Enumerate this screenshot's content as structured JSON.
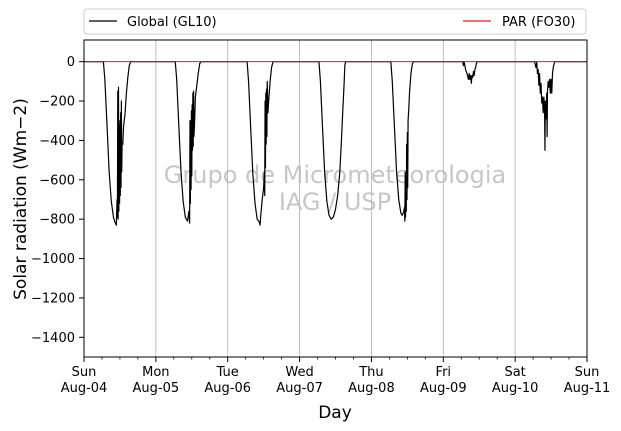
{
  "chart_data": {
    "type": "line",
    "ylabel": "Solar radiation (Wm−2)",
    "xlabel": "Day",
    "ylim": [
      -1500,
      110
    ],
    "yticks": [
      0,
      -200,
      -400,
      -600,
      -800,
      -1000,
      -1200,
      -1400
    ],
    "x_range_days": [
      0,
      7
    ],
    "xticks": [
      {
        "day": 0,
        "line1": "Sun",
        "line2": "Aug-04"
      },
      {
        "day": 1,
        "line1": "Mon",
        "line2": "Aug-05"
      },
      {
        "day": 2,
        "line1": "Tue",
        "line2": "Aug-06"
      },
      {
        "day": 3,
        "line1": "Wed",
        "line2": "Aug-07"
      },
      {
        "day": 4,
        "line1": "Thu",
        "line2": "Aug-08"
      },
      {
        "day": 5,
        "line1": "Fri",
        "line2": "Aug-09"
      },
      {
        "day": 6,
        "line1": "Sat",
        "line2": "Aug-10"
      },
      {
        "day": 7,
        "line1": "Sun",
        "line2": "Aug-11"
      }
    ],
    "minor_xticks_hours": [
      6,
      12,
      18
    ],
    "grid": "x-major",
    "legend": {
      "placement": "top",
      "entries": [
        "Global (GL10)",
        "PAR (FO30)"
      ]
    },
    "series": [
      {
        "name": "Global (GL10)",
        "color": "#000000",
        "points": [
          [
            0.0,
            0
          ],
          [
            0.27,
            0
          ],
          [
            0.29,
            -90
          ],
          [
            0.32,
            -320
          ],
          [
            0.35,
            -560
          ],
          [
            0.38,
            -710
          ],
          [
            0.41,
            -790
          ],
          [
            0.43,
            -815
          ],
          [
            0.45,
            -830
          ],
          [
            0.46,
            -700
          ],
          [
            0.465,
            -790
          ],
          [
            0.47,
            -150
          ],
          [
            0.475,
            -800
          ],
          [
            0.48,
            -130
          ],
          [
            0.485,
            -760
          ],
          [
            0.49,
            -300
          ],
          [
            0.495,
            -720
          ],
          [
            0.5,
            -320
          ],
          [
            0.505,
            -680
          ],
          [
            0.51,
            -260
          ],
          [
            0.515,
            -640
          ],
          [
            0.52,
            -200
          ],
          [
            0.525,
            -560
          ],
          [
            0.53,
            -420
          ],
          [
            0.54,
            -420
          ],
          [
            0.55,
            -330
          ],
          [
            0.57,
            -270
          ],
          [
            0.59,
            -160
          ],
          [
            0.61,
            -80
          ],
          [
            0.63,
            -20
          ],
          [
            0.65,
            0
          ],
          [
            1.27,
            0
          ],
          [
            1.29,
            -90
          ],
          [
            1.32,
            -330
          ],
          [
            1.35,
            -560
          ],
          [
            1.38,
            -710
          ],
          [
            1.41,
            -790
          ],
          [
            1.44,
            -810
          ],
          [
            1.46,
            -760
          ],
          [
            1.47,
            -820
          ],
          [
            1.475,
            -300
          ],
          [
            1.48,
            -720
          ],
          [
            1.485,
            -300
          ],
          [
            1.49,
            -650
          ],
          [
            1.495,
            -250
          ],
          [
            1.5,
            -580
          ],
          [
            1.505,
            -220
          ],
          [
            1.51,
            -450
          ],
          [
            1.515,
            -160
          ],
          [
            1.52,
            -430
          ],
          [
            1.525,
            -150
          ],
          [
            1.53,
            -380
          ],
          [
            1.54,
            -300
          ],
          [
            1.55,
            -180
          ],
          [
            1.57,
            -120
          ],
          [
            1.59,
            -60
          ],
          [
            1.61,
            -10
          ],
          [
            1.63,
            0
          ],
          [
            2.27,
            0
          ],
          [
            2.29,
            -100
          ],
          [
            2.32,
            -340
          ],
          [
            2.35,
            -570
          ],
          [
            2.38,
            -720
          ],
          [
            2.41,
            -800
          ],
          [
            2.44,
            -815
          ],
          [
            2.45,
            -830
          ],
          [
            2.46,
            -780
          ],
          [
            2.48,
            -700
          ],
          [
            2.5,
            -640
          ],
          [
            2.51,
            -560
          ],
          [
            2.515,
            -680
          ],
          [
            2.52,
            -200
          ],
          [
            2.525,
            -540
          ],
          [
            2.53,
            -160
          ],
          [
            2.535,
            -420
          ],
          [
            2.54,
            -140
          ],
          [
            2.545,
            -380
          ],
          [
            2.55,
            -100
          ],
          [
            2.56,
            -260
          ],
          [
            2.57,
            -200
          ],
          [
            2.59,
            -100
          ],
          [
            2.61,
            -30
          ],
          [
            2.63,
            0
          ],
          [
            3.27,
            0
          ],
          [
            3.29,
            -100
          ],
          [
            3.32,
            -340
          ],
          [
            3.35,
            -570
          ],
          [
            3.38,
            -710
          ],
          [
            3.41,
            -780
          ],
          [
            3.44,
            -800
          ],
          [
            3.47,
            -790
          ],
          [
            3.5,
            -750
          ],
          [
            3.53,
            -680
          ],
          [
            3.56,
            -560
          ],
          [
            3.58,
            -420
          ],
          [
            3.6,
            -260
          ],
          [
            3.62,
            -110
          ],
          [
            3.63,
            -20
          ],
          [
            3.64,
            0
          ],
          [
            4.27,
            0
          ],
          [
            4.29,
            -100
          ],
          [
            4.32,
            -330
          ],
          [
            4.35,
            -560
          ],
          [
            4.38,
            -700
          ],
          [
            4.41,
            -770
          ],
          [
            4.43,
            -780
          ],
          [
            4.45,
            -760
          ],
          [
            4.46,
            -740
          ],
          [
            4.465,
            -810
          ],
          [
            4.47,
            -560
          ],
          [
            4.475,
            -790
          ],
          [
            4.48,
            -600
          ],
          [
            4.485,
            -760
          ],
          [
            4.49,
            -420
          ],
          [
            4.495,
            -700
          ],
          [
            4.5,
            -360
          ],
          [
            4.505,
            -640
          ],
          [
            4.51,
            -300
          ],
          [
            4.52,
            -240
          ],
          [
            4.53,
            -160
          ],
          [
            4.55,
            -60
          ],
          [
            4.57,
            -10
          ],
          [
            4.59,
            0
          ],
          [
            5.27,
            0
          ],
          [
            5.28,
            -20
          ],
          [
            5.29,
            0
          ],
          [
            5.31,
            -40
          ],
          [
            5.33,
            -60
          ],
          [
            5.35,
            -90
          ],
          [
            5.36,
            -60
          ],
          [
            5.37,
            -90
          ],
          [
            5.38,
            -70
          ],
          [
            5.39,
            -110
          ],
          [
            5.4,
            -70
          ],
          [
            5.41,
            -80
          ],
          [
            5.42,
            -50
          ],
          [
            5.43,
            -70
          ],
          [
            5.44,
            -40
          ],
          [
            5.45,
            -30
          ],
          [
            5.46,
            -10
          ],
          [
            5.47,
            0
          ],
          [
            6.27,
            0
          ],
          [
            6.29,
            -30
          ],
          [
            6.3,
            0
          ],
          [
            6.31,
            -60
          ],
          [
            6.32,
            -40
          ],
          [
            6.33,
            -120
          ],
          [
            6.34,
            -60
          ],
          [
            6.35,
            -160
          ],
          [
            6.36,
            -110
          ],
          [
            6.37,
            -210
          ],
          [
            6.38,
            -180
          ],
          [
            6.39,
            -260
          ],
          [
            6.4,
            -180
          ],
          [
            6.41,
            -260
          ],
          [
            6.415,
            -450
          ],
          [
            6.42,
            -200
          ],
          [
            6.43,
            -290
          ],
          [
            6.44,
            -160
          ],
          [
            6.445,
            -380
          ],
          [
            6.45,
            -150
          ],
          [
            6.46,
            -100
          ],
          [
            6.47,
            -130
          ],
          [
            6.48,
            -90
          ],
          [
            6.49,
            -160
          ],
          [
            6.5,
            -90
          ],
          [
            6.51,
            -160
          ],
          [
            6.52,
            -60
          ],
          [
            6.53,
            -30
          ],
          [
            6.55,
            0
          ],
          [
            7.0,
            0
          ]
        ]
      },
      {
        "name": "PAR (FO30)",
        "color": "#e31a1c",
        "points": [
          [
            0,
            0
          ],
          [
            7,
            0
          ]
        ]
      }
    ],
    "annotations": [
      {
        "text": "Grupo de Micrometeorologia",
        "role": "watermark"
      },
      {
        "text": "IAG / USP",
        "role": "watermark"
      }
    ]
  }
}
